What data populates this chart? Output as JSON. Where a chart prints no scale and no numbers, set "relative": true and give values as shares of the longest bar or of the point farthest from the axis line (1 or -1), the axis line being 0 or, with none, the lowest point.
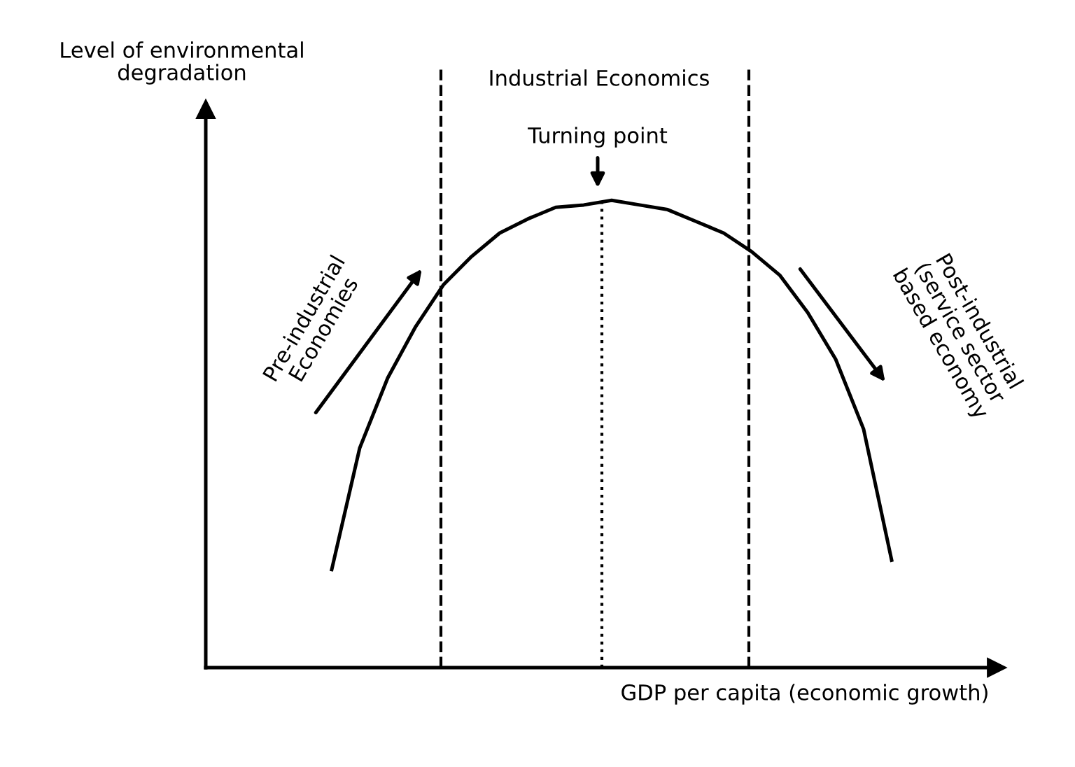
{
  "chart_data": {
    "type": "line",
    "relative": true,
    "xlabel": "GDP per capita (economic growth)",
    "categories": [
      null,
      null,
      null,
      null,
      null,
      null,
      null,
      null,
      null,
      null,
      null,
      null,
      null,
      null,
      null,
      null,
      null,
      null,
      null,
      null,
      null,
      null,
      null,
      null,
      null,
      null,
      null,
      null
    ],
    "series": [
      {
        "color": "#000000",
        "values": [
          null,
          null,
          null,
          null,
          0.21,
          0.47,
          0.62,
          0.73,
          0.82,
          0.88,
          0.93,
          0.96,
          0.985,
          0.99,
          1.0,
          0.99,
          0.98,
          0.955,
          0.93,
          0.89,
          0.84,
          0.76,
          0.66,
          0.51,
          0.23,
          null,
          null,
          null
        ]
      }
    ],
    "annotations": [
      "Level of environmental\ndegradation",
      "Industrial Economics",
      "Turning point",
      "Pre-industrial\nEconomies",
      "Post-industrial\n(service sector\nbased economy"
    ],
    "marker": "none",
    "line_style": "solid",
    "grid": false
  }
}
